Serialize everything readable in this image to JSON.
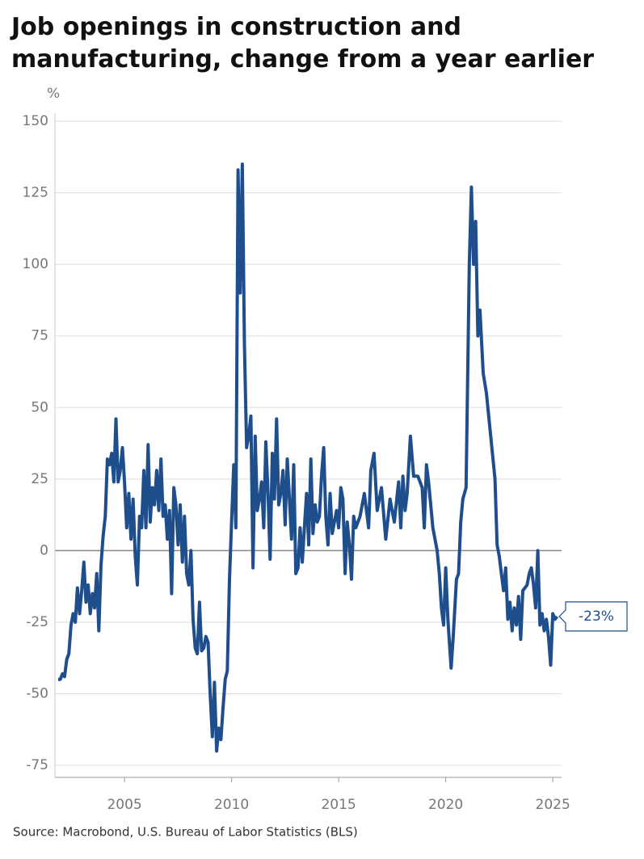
{
  "chart_data": {
    "type": "line",
    "title": "Job openings in construction and manufacturing, change from a year earlier",
    "y_label": "%",
    "source": "Source: Macrobond, U.S. Bureau of Labor Statistics (BLS)",
    "color": "#1f4e8c",
    "xlim": [
      2001.75,
      2025.41
    ],
    "xticks": [
      2005,
      2010,
      2015,
      2020,
      2025
    ],
    "ylim": [
      -79.2,
      150
    ],
    "yticks": [
      150,
      125,
      100,
      75,
      50,
      25,
      0,
      -25,
      -50,
      -75
    ],
    "grid": true,
    "annotation": {
      "value": -23,
      "label": "-23%"
    },
    "x": [
      2001.9,
      2002.0,
      2002.1,
      2002.2,
      2002.3,
      2002.4,
      2002.5,
      2002.6,
      2002.7,
      2002.8,
      2002.9,
      2003.0,
      2003.1,
      2003.2,
      2003.3,
      2003.4,
      2003.5,
      2003.6,
      2003.7,
      2003.8,
      2003.9,
      2004.0,
      2004.1,
      2004.2,
      2004.3,
      2004.4,
      2004.5,
      2004.6,
      2004.7,
      2004.8,
      2004.9,
      2005.0,
      2005.1,
      2005.2,
      2005.3,
      2005.4,
      2005.5,
      2005.6,
      2005.7,
      2005.8,
      2005.9,
      2006.0,
      2006.1,
      2006.2,
      2006.3,
      2006.4,
      2006.5,
      2006.6,
      2006.7,
      2006.8,
      2006.9,
      2007.0,
      2007.1,
      2007.2,
      2007.3,
      2007.4,
      2007.5,
      2007.6,
      2007.7,
      2007.8,
      2007.9,
      2008.0,
      2008.1,
      2008.2,
      2008.3,
      2008.4,
      2008.5,
      2008.6,
      2008.7,
      2008.8,
      2008.9,
      2009.0,
      2009.1,
      2009.2,
      2009.3,
      2009.4,
      2009.5,
      2009.6,
      2009.7,
      2009.8,
      2009.9,
      2010.0,
      2010.1,
      2010.2,
      2010.3,
      2010.4,
      2010.5,
      2010.6,
      2010.7,
      2010.8,
      2010.9,
      2011.0,
      2011.1,
      2011.2,
      2011.3,
      2011.4,
      2011.5,
      2011.6,
      2011.7,
      2011.8,
      2011.9,
      2012.0,
      2012.1,
      2012.2,
      2012.3,
      2012.4,
      2012.5,
      2012.6,
      2012.7,
      2012.8,
      2012.9,
      2013.0,
      2013.1,
      2013.2,
      2013.3,
      2013.4,
      2013.5,
      2013.6,
      2013.7,
      2013.8,
      2013.9,
      2014.0,
      2014.1,
      2014.2,
      2014.3,
      2014.4,
      2014.5,
      2014.6,
      2014.7,
      2014.8,
      2014.9,
      2015.0,
      2015.1,
      2015.2,
      2015.3,
      2015.4,
      2015.5,
      2015.6,
      2015.7,
      2015.8,
      2015.9,
      2016.0,
      2016.2,
      2016.4,
      2016.5,
      2016.65,
      2016.8,
      2017.0,
      2017.2,
      2017.4,
      2017.6,
      2017.8,
      2017.9,
      2018.0,
      2018.1,
      2018.2,
      2018.35,
      2018.5,
      2018.7,
      2018.9,
      2019.0,
      2019.1,
      2019.2,
      2019.4,
      2019.6,
      2019.7,
      2019.8,
      2019.9,
      2020.0,
      2020.1,
      2020.25,
      2020.35,
      2020.5,
      2020.6,
      2020.7,
      2020.8,
      2020.95,
      2021.1,
      2021.2,
      2021.3,
      2021.4,
      2021.5,
      2021.6,
      2021.75,
      2021.9,
      2022.1,
      2022.3,
      2022.4,
      2022.5,
      2022.6,
      2022.7,
      2022.8,
      2022.9,
      2023.0,
      2023.1,
      2023.2,
      2023.3,
      2023.4,
      2023.5,
      2023.6,
      2023.8,
      2023.9,
      2024.0,
      2024.1,
      2024.2,
      2024.3,
      2024.4,
      2024.5,
      2024.6,
      2024.7,
      2024.8,
      2024.9,
      2025.0,
      2025.1,
      2025.2
    ],
    "values": [
      -45,
      -45,
      -43,
      -44,
      -38,
      -36,
      -26,
      -22,
      -25,
      -13,
      -22,
      -14,
      -4,
      -18,
      -12,
      -22,
      -15,
      -20,
      -8,
      -28,
      -5,
      5,
      12,
      32,
      30,
      34,
      24,
      46,
      24,
      28,
      36,
      24,
      8,
      20,
      4,
      18,
      -2,
      -12,
      12,
      8,
      28,
      8,
      37,
      10,
      22,
      16,
      28,
      14,
      32,
      12,
      16,
      4,
      14,
      -15,
      22,
      16,
      2,
      16,
      -4,
      12,
      -8,
      -12,
      0,
      -24,
      -34,
      -36,
      -18,
      -35,
      -34,
      -30,
      -32,
      -50,
      -65,
      -46,
      -70,
      -62,
      -66,
      -55,
      -45,
      -42,
      -10,
      10,
      30,
      8,
      133,
      90,
      135,
      72,
      36,
      40,
      47,
      -6,
      40,
      14,
      18,
      24,
      8,
      38,
      20,
      -3,
      34,
      18,
      46,
      16,
      20,
      28,
      9,
      32,
      18,
      4,
      30,
      -8,
      -6,
      8,
      -4,
      8,
      20,
      2,
      32,
      6,
      16,
      10,
      12,
      26,
      36,
      12,
      2,
      20,
      6,
      10,
      14,
      8,
      22,
      18,
      -8,
      10,
      2,
      -10,
      12,
      8,
      10,
      12,
      20,
      8,
      28,
      34,
      14,
      22,
      4,
      18,
      10,
      24,
      8,
      26,
      14,
      20,
      40,
      26,
      26,
      22,
      8,
      30,
      24,
      8,
      0,
      -8,
      -20,
      -26,
      -6,
      -24,
      -41,
      -30,
      -10,
      -8,
      10,
      18,
      22,
      100,
      127,
      100,
      115,
      75,
      84,
      62,
      55,
      40,
      25,
      2,
      -2,
      -8,
      -14,
      -6,
      -24,
      -18,
      -28,
      -20,
      -26,
      -16,
      -31,
      -14,
      -12,
      -8,
      -6,
      -12,
      -20,
      0,
      -26,
      -22,
      -28,
      -24,
      -30,
      -40,
      -22,
      -24,
      -23
    ]
  }
}
